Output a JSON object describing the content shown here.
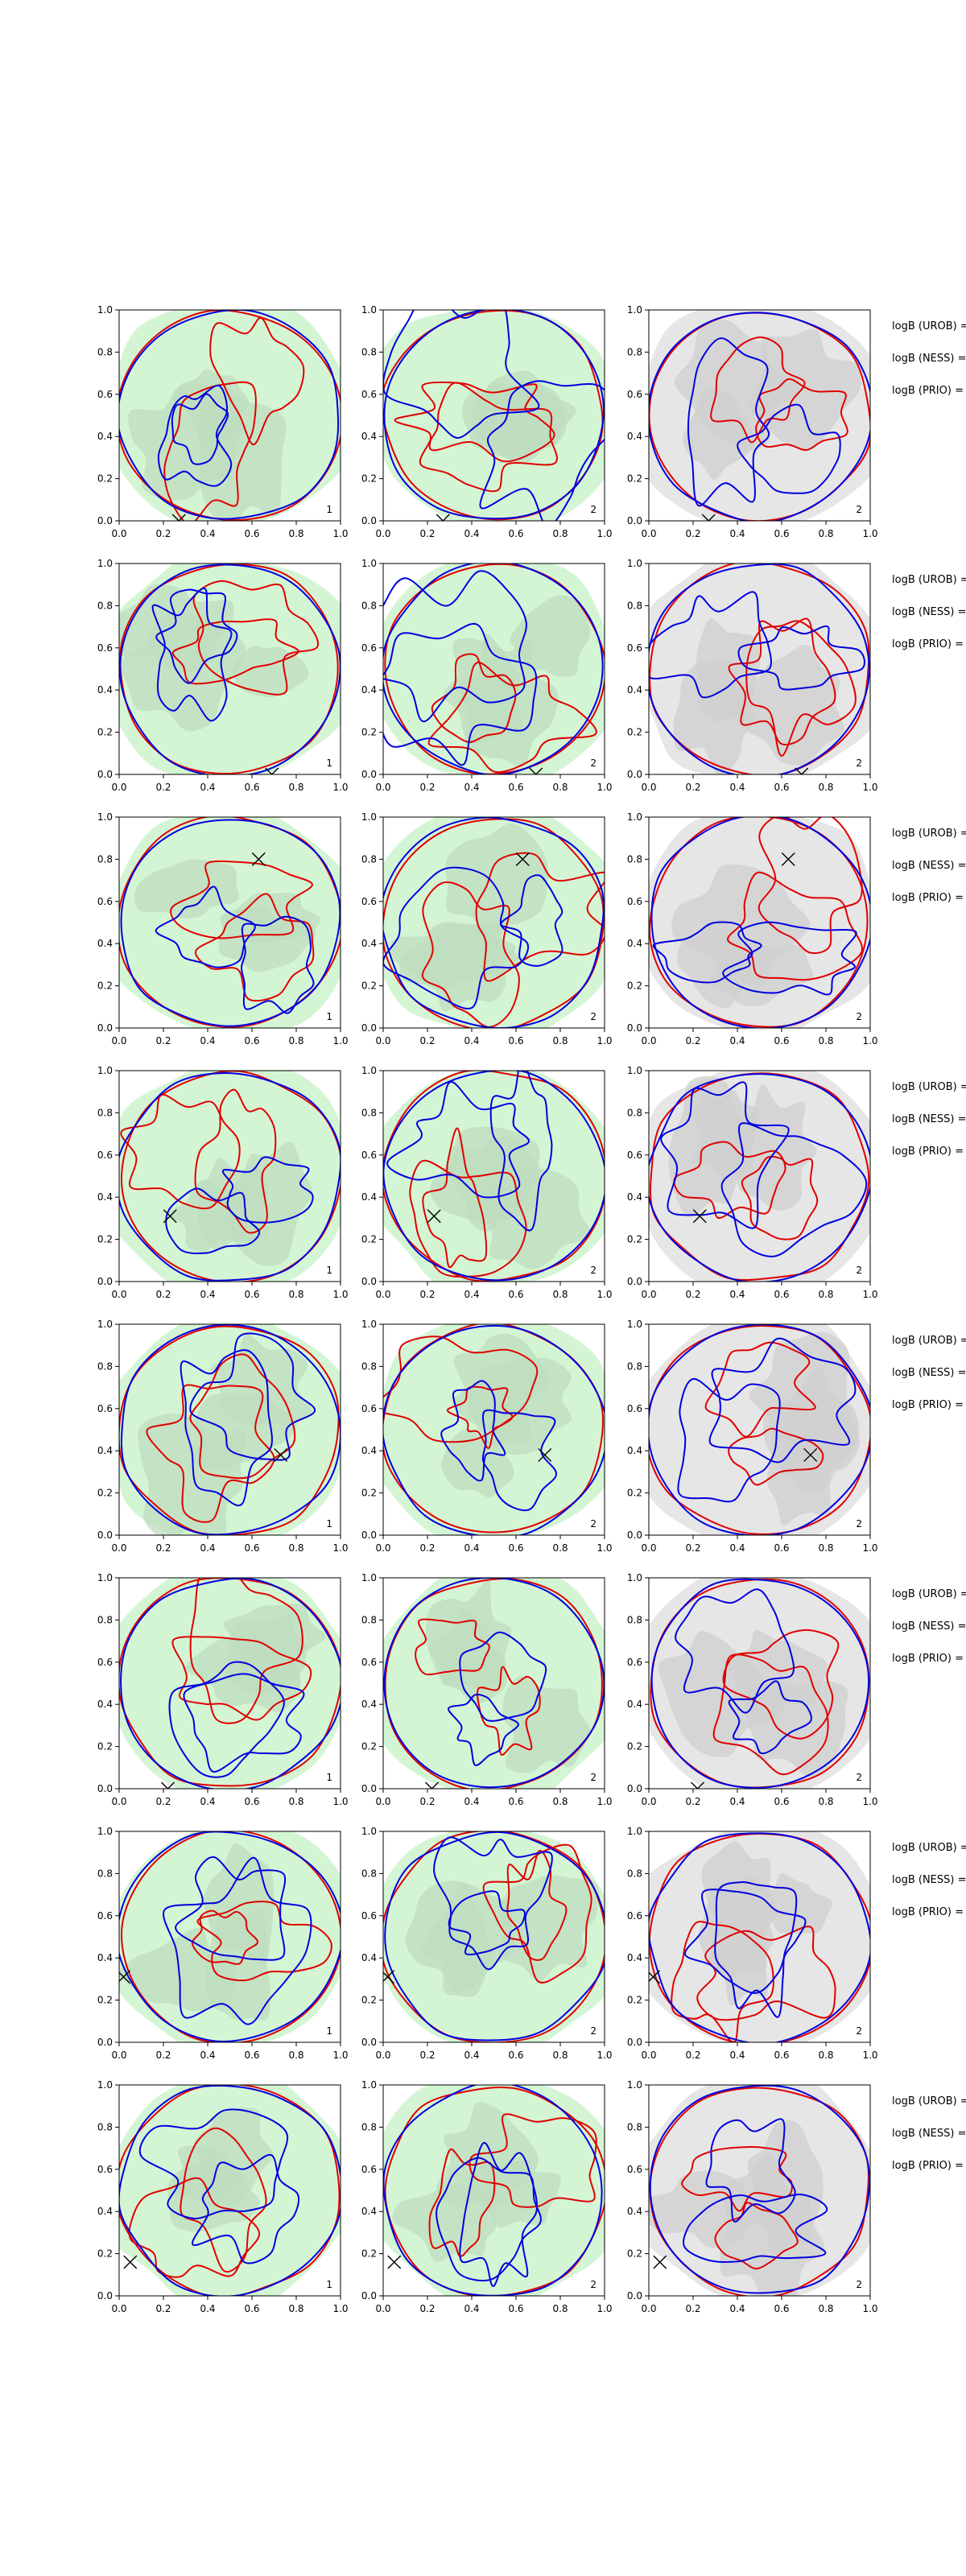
{
  "chart_data": {
    "type": "contour-grid",
    "rows": 8,
    "columns": 3,
    "xlim": [
      0,
      1
    ],
    "ylim": [
      0,
      1
    ],
    "x_ticks": [
      "0.0",
      "0.2",
      "0.4",
      "0.6",
      "0.8",
      "1.0"
    ],
    "y_ticks": [
      "0.0",
      "0.2",
      "0.4",
      "0.6",
      "0.8",
      "1.0"
    ],
    "panel_backgrounds": [
      "#d4f5d4",
      "#d4f5d4",
      "#e6e6e6"
    ],
    "contour_colors": [
      "#e00000",
      "#0000e0"
    ],
    "row_labels": [
      "logB (UROB) =",
      "logB (NESS) =",
      "logB (PRIO) ="
    ],
    "corner_labels": [
      "1",
      "2",
      "2"
    ],
    "markers": [
      {
        "x": 0.27,
        "y": 0.0
      },
      {
        "x": 0.69,
        "y": 0.0
      },
      {
        "x": 0.63,
        "y": 0.8
      },
      {
        "x": 0.23,
        "y": 0.31
      },
      {
        "x": 0.73,
        "y": 0.38
      },
      {
        "x": 0.22,
        "y": 0.0
      },
      {
        "x": 0.02,
        "y": 0.31
      },
      {
        "x": 0.05,
        "y": 0.16
      }
    ]
  }
}
